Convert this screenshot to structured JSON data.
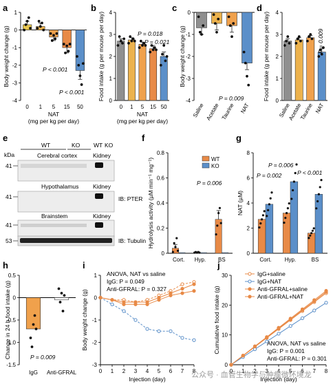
{
  "figure": {
    "watermark": "公众号 · 血管生物学与肿瘤微环境龙"
  },
  "chart_data": [
    {
      "panel": "a",
      "type": "bar",
      "ylabel": "Body weight change (g)",
      "xlabel": "NAT",
      "xlabel2": "(mg per kg per day)",
      "categories": [
        "0",
        "1",
        "5",
        "15",
        "50"
      ],
      "values": [
        0.3,
        0.2,
        -0.4,
        -1.0,
        -2.3
      ],
      "errors": [
        0.2,
        0.2,
        0.2,
        0.3,
        0.5
      ],
      "colors": [
        "#e7c64f",
        "#ecb24d",
        "#f0a14c",
        "#e88a47",
        "#5b8fc9"
      ],
      "points": [
        [
          0.0,
          0.3,
          0.5,
          0.7,
          0.1
        ],
        [
          0.1,
          0.5,
          0.2,
          0.4,
          0.0
        ],
        [
          -0.2,
          -0.6,
          -0.3,
          -0.5,
          -0.2
        ],
        [
          -0.8,
          -1.3,
          -0.9,
          -1.2,
          -0.8
        ],
        [
          -1.5,
          -2.0,
          -2.6,
          -3.1,
          -1.9
        ]
      ],
      "ylim": [
        -4,
        1
      ],
      "yticks": [
        "1",
        "0",
        "-1",
        "-2",
        "-3",
        "-4"
      ],
      "annotations": [
        "P < 0.001",
        "P < 0.001"
      ]
    },
    {
      "panel": "b",
      "type": "bar",
      "ylabel": "Food intake (g per mouse per day)",
      "xlabel": "NAT",
      "xlabel2": "(mg per kg per day)",
      "categories": [
        "0",
        "1",
        "5",
        "15",
        "50"
      ],
      "values": [
        2.7,
        2.75,
        2.55,
        2.35,
        2.0
      ],
      "errors": [
        0.1,
        0.1,
        0.1,
        0.15,
        0.2
      ],
      "colors": [
        "#8f8f8f",
        "#ecb24d",
        "#f0a14c",
        "#e88a47",
        "#5b8fc9"
      ],
      "points": [
        [
          2.5,
          2.9,
          2.7,
          2.6,
          2.8
        ],
        [
          2.6,
          2.9,
          2.7,
          2.8,
          2.7
        ],
        [
          2.4,
          2.7,
          2.5,
          2.6,
          2.5
        ],
        [
          2.2,
          2.5,
          2.3,
          2.4,
          2.3
        ],
        [
          1.6,
          2.1,
          2.5,
          1.8,
          2.0
        ]
      ],
      "ylim": [
        0,
        4
      ],
      "yticks": [
        "4",
        "3",
        "2",
        "1",
        "0"
      ],
      "annotations": [
        "P = 0.018",
        "P = 0.021"
      ]
    },
    {
      "panel": "c",
      "type": "bar",
      "ylabel": "Body weight change (g)",
      "categories": [
        "Saline",
        "Acetate",
        "Taurine",
        "NAT"
      ],
      "values": [
        -0.7,
        -0.5,
        -0.6,
        -2.3
      ],
      "errors": [
        0.3,
        0.3,
        0.3,
        0.3
      ],
      "colors": [
        "#8f8f8f",
        "#ecb24d",
        "#f0a14c",
        "#5b8fc9"
      ],
      "points": [
        [
          -0.2,
          -0.9,
          -1.0,
          -0.6
        ],
        [
          -0.1,
          -0.5,
          -0.9,
          -0.3
        ],
        [
          -0.2,
          -0.6,
          -1.1,
          -0.5
        ],
        [
          -1.8,
          -2.3,
          -2.9,
          -3.3
        ]
      ],
      "ylim": [
        -4,
        0
      ],
      "yticks": [
        "0",
        "-1",
        "-2",
        "-3",
        "-4"
      ],
      "annotations": [
        "P = 0.009"
      ]
    },
    {
      "panel": "d",
      "type": "bar",
      "ylabel": "Food intake (g per mouse per day)",
      "categories": [
        "Saline",
        "Acetate",
        "Taurine",
        "NAT"
      ],
      "values": [
        2.7,
        2.75,
        2.85,
        2.2
      ],
      "errors": [
        0.1,
        0.1,
        0.1,
        0.15
      ],
      "colors": [
        "#8f8f8f",
        "#ecb24d",
        "#f0a14c",
        "#5b8fc9"
      ],
      "points": [
        [
          2.5,
          2.7,
          2.9,
          2.6
        ],
        [
          2.6,
          2.8,
          2.9,
          2.7
        ],
        [
          2.7,
          2.9,
          3.0,
          2.8
        ],
        [
          2.0,
          2.3,
          2.1,
          2.4
        ]
      ],
      "ylim": [
        0,
        4
      ],
      "yticks": [
        "4",
        "3",
        "2",
        "1",
        "0"
      ],
      "annotations": [
        "P = 0.009"
      ]
    },
    {
      "panel": "f",
      "type": "bar",
      "ylabel": "Hydrolysis activity (µM min⁻¹ mg⁻¹)",
      "categories": [
        "Cort.",
        "Hyp.",
        "BS"
      ],
      "series": [
        {
          "name": "WT",
          "color": "#e88a47",
          "values": [
            0.04,
            0.005,
            0.27
          ]
        },
        {
          "name": "KO",
          "color": "#5b8fc9",
          "values": [
            0.005,
            0.005,
            0.005
          ]
        }
      ],
      "errors": [
        0.03,
        0.003,
        0.07
      ],
      "ylim": [
        0,
        0.8
      ],
      "yticks": [
        "0.8",
        "0.6",
        "0.4",
        "0.2",
        "0"
      ],
      "annotations": [
        "P = 0.006"
      ]
    },
    {
      "panel": "g",
      "type": "bar",
      "ylabel": "NAT (µM)",
      "categories": [
        "Cort.",
        "Hyp.",
        "BS"
      ],
      "series": [
        {
          "name": "WT",
          "color": "#e88a47",
          "values": [
            2.7,
            3.2,
            1.6
          ]
        },
        {
          "name": "KO",
          "color": "#5b8fc9",
          "values": [
            3.9,
            5.7,
            4.7
          ]
        }
      ],
      "ylim": [
        0,
        8
      ],
      "yticks": [
        "8",
        "6",
        "4",
        "2",
        "0"
      ],
      "annotations": [
        "P = 0.006",
        "P = 0.002",
        "P < 0.001"
      ]
    },
    {
      "panel": "h",
      "type": "bar",
      "ylabel": "Change in 24 h food intake (g)",
      "categories": [
        "IgG",
        "Anti-GFRAL"
      ],
      "values": [
        -0.7,
        -0.05
      ],
      "colors": [
        "#f0a14c",
        "#ffffff"
      ],
      "ylim": [
        -1.5,
        0.5
      ],
      "yticks": [
        "0.5",
        "0",
        "-0.5",
        "-1.0",
        "-1.5"
      ],
      "annotations": [
        "P = 0.009"
      ]
    },
    {
      "panel": "i",
      "type": "line",
      "ylabel": "Body weight change (g)",
      "xlabel": "Injection (day)",
      "x": [
        0,
        1,
        2,
        3,
        4,
        5,
        6,
        7,
        8
      ],
      "series": [
        {
          "name": "IgG+saline",
          "color": "#e88a47",
          "values": [
            0,
            -0.1,
            -0.1,
            -0.2,
            -0.1,
            0.1,
            0.3,
            0.6,
            0.7
          ]
        },
        {
          "name": "IgG+NAT",
          "color": "#5b8fc9",
          "values": [
            0,
            -0.3,
            -0.6,
            -1.0,
            -1.4,
            -1.5,
            -1.5,
            -1.8,
            -1.9
          ]
        },
        {
          "name": "Anti-GFRAL+saline",
          "color": "#e88a47",
          "values": [
            0,
            -0.1,
            -0.2,
            -0.2,
            -0.2,
            0.0,
            0.2,
            0.4,
            0.6
          ]
        },
        {
          "name": "Anti-GFRAL+NAT",
          "color": "#e88a47",
          "values": [
            0,
            -0.1,
            -0.3,
            -0.3,
            -0.3,
            -0.1,
            0.1,
            0.2,
            0.3
          ]
        }
      ],
      "ylim": [
        -3,
        1
      ],
      "yticks": [
        "1",
        "0",
        "-1",
        "-2",
        "-3"
      ],
      "annotations": [
        "ANOVA, NAT vs saline",
        "IgG: P = 0.049",
        "Anti-GFRAL: P = 0.327"
      ]
    },
    {
      "panel": "j",
      "type": "line",
      "ylabel": "Cumulative food intake (g)",
      "xlabel": "Injection (day)",
      "x": [
        0,
        1,
        2,
        3,
        4,
        5,
        6,
        7,
        8
      ],
      "series": [
        {
          "name": "IgG+saline",
          "color": "#e88a47",
          "values": [
            0,
            3,
            6,
            9,
            12,
            15,
            18,
            21,
            24
          ]
        },
        {
          "name": "IgG+NAT",
          "color": "#5b8fc9",
          "values": [
            0,
            2.6,
            5.2,
            7.8,
            10.4,
            13,
            15.6,
            18.2,
            20.8
          ]
        },
        {
          "name": "Anti-GFRAL+saline",
          "color": "#e88a47",
          "values": [
            0,
            3.1,
            6.2,
            9.3,
            12.4,
            15.5,
            18.6,
            21.7,
            24.8
          ]
        },
        {
          "name": "Anti-GFRAL+NAT",
          "color": "#e88a47",
          "values": [
            0,
            3.05,
            6.1,
            9.1,
            12.2,
            15.2,
            18.3,
            21.3,
            24.4
          ]
        }
      ],
      "ylim": [
        0,
        30
      ],
      "yticks": [
        "30",
        "20",
        "10",
        "0"
      ],
      "annotations": [
        "ANOVA, NAT vs saline",
        "IgG: P = 0.001",
        "Anti-GFRAL: P = 0.301"
      ]
    }
  ],
  "blot": {
    "kda_label": "kDa",
    "lane_labels": [
      "WT",
      "KO",
      "WT",
      "KO"
    ],
    "regions": [
      "Cerebral cortex",
      "Hypothalamus",
      "Brainstem"
    ],
    "kidney_label": "Kidney",
    "markers": [
      "41",
      "41",
      "41",
      "53"
    ],
    "ib_pter": "IB: PTER",
    "ib_tubulin": "IB: Tubulin"
  },
  "panel_letters": [
    "a",
    "b",
    "c",
    "d",
    "e",
    "f",
    "g",
    "h",
    "i",
    "j"
  ]
}
